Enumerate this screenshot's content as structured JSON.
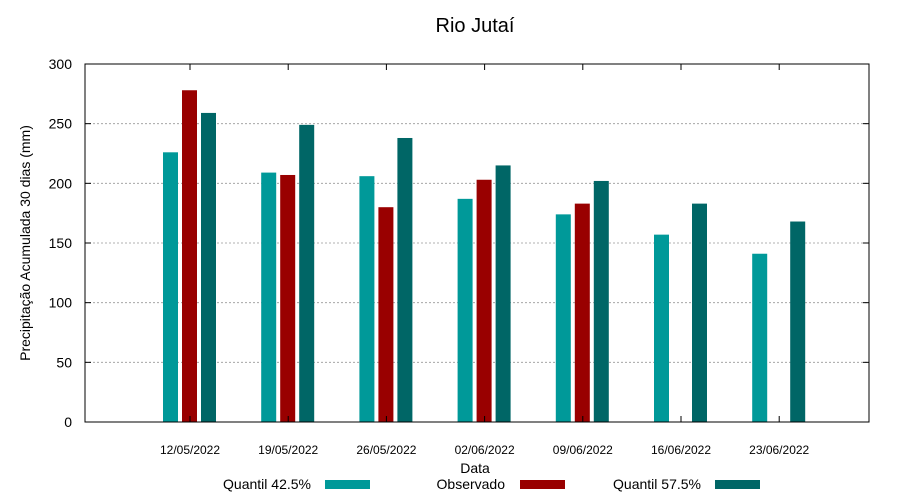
{
  "chart_data": {
    "type": "bar",
    "title": "Rio Jutaí",
    "xlabel": "Data",
    "ylabel": "Precipitação Acumulada 30 dias (mm)",
    "ylim": [
      0,
      300
    ],
    "yticks": [
      0,
      50,
      100,
      150,
      200,
      250,
      300
    ],
    "grid": true,
    "legend_position": "bottom",
    "categories": [
      "12/05/2022",
      "19/05/2022",
      "26/05/2022",
      "02/06/2022",
      "09/06/2022",
      "16/06/2022",
      "23/06/2022"
    ],
    "series": [
      {
        "name": "Quantil 42.5%",
        "color": "#009999",
        "values": [
          226,
          209,
          206,
          187,
          174,
          157,
          141
        ]
      },
      {
        "name": "Observado",
        "color": "#990000",
        "values": [
          278,
          207,
          180,
          203,
          183,
          null,
          null
        ]
      },
      {
        "name": "Quantil 57.5%",
        "color": "#006666",
        "values": [
          259,
          249,
          238,
          215,
          202,
          183,
          168
        ]
      }
    ]
  }
}
